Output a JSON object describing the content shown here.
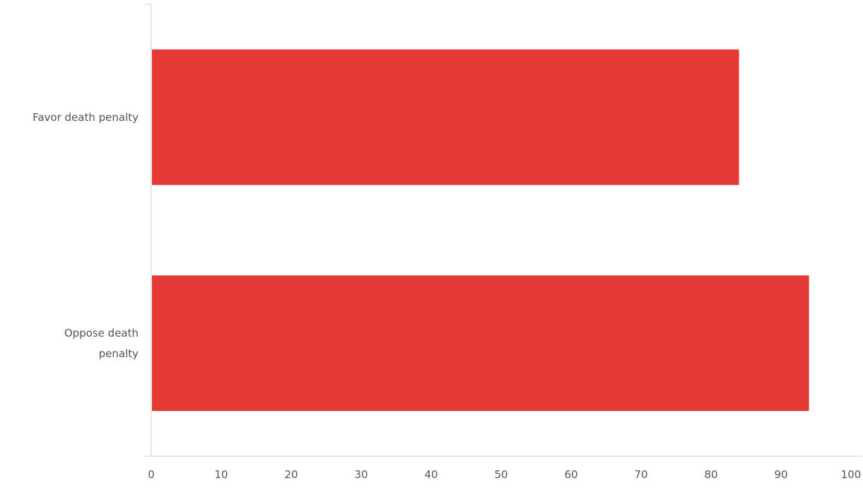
{
  "chart_data": {
    "type": "bar",
    "orientation": "horizontal",
    "title": "",
    "xlabel": "",
    "ylabel": "",
    "categories": [
      [
        "Favor death penalty"
      ],
      [
        "Oppose death",
        "penalty"
      ]
    ],
    "values": [
      84,
      94
    ],
    "xlim": [
      0,
      100
    ],
    "xticks": [
      0,
      10,
      20,
      30,
      40,
      50,
      60,
      70,
      80,
      90,
      100
    ],
    "bar_color": "#e53935",
    "axis_color": "#cccccc",
    "grid": false,
    "legend": "none"
  }
}
